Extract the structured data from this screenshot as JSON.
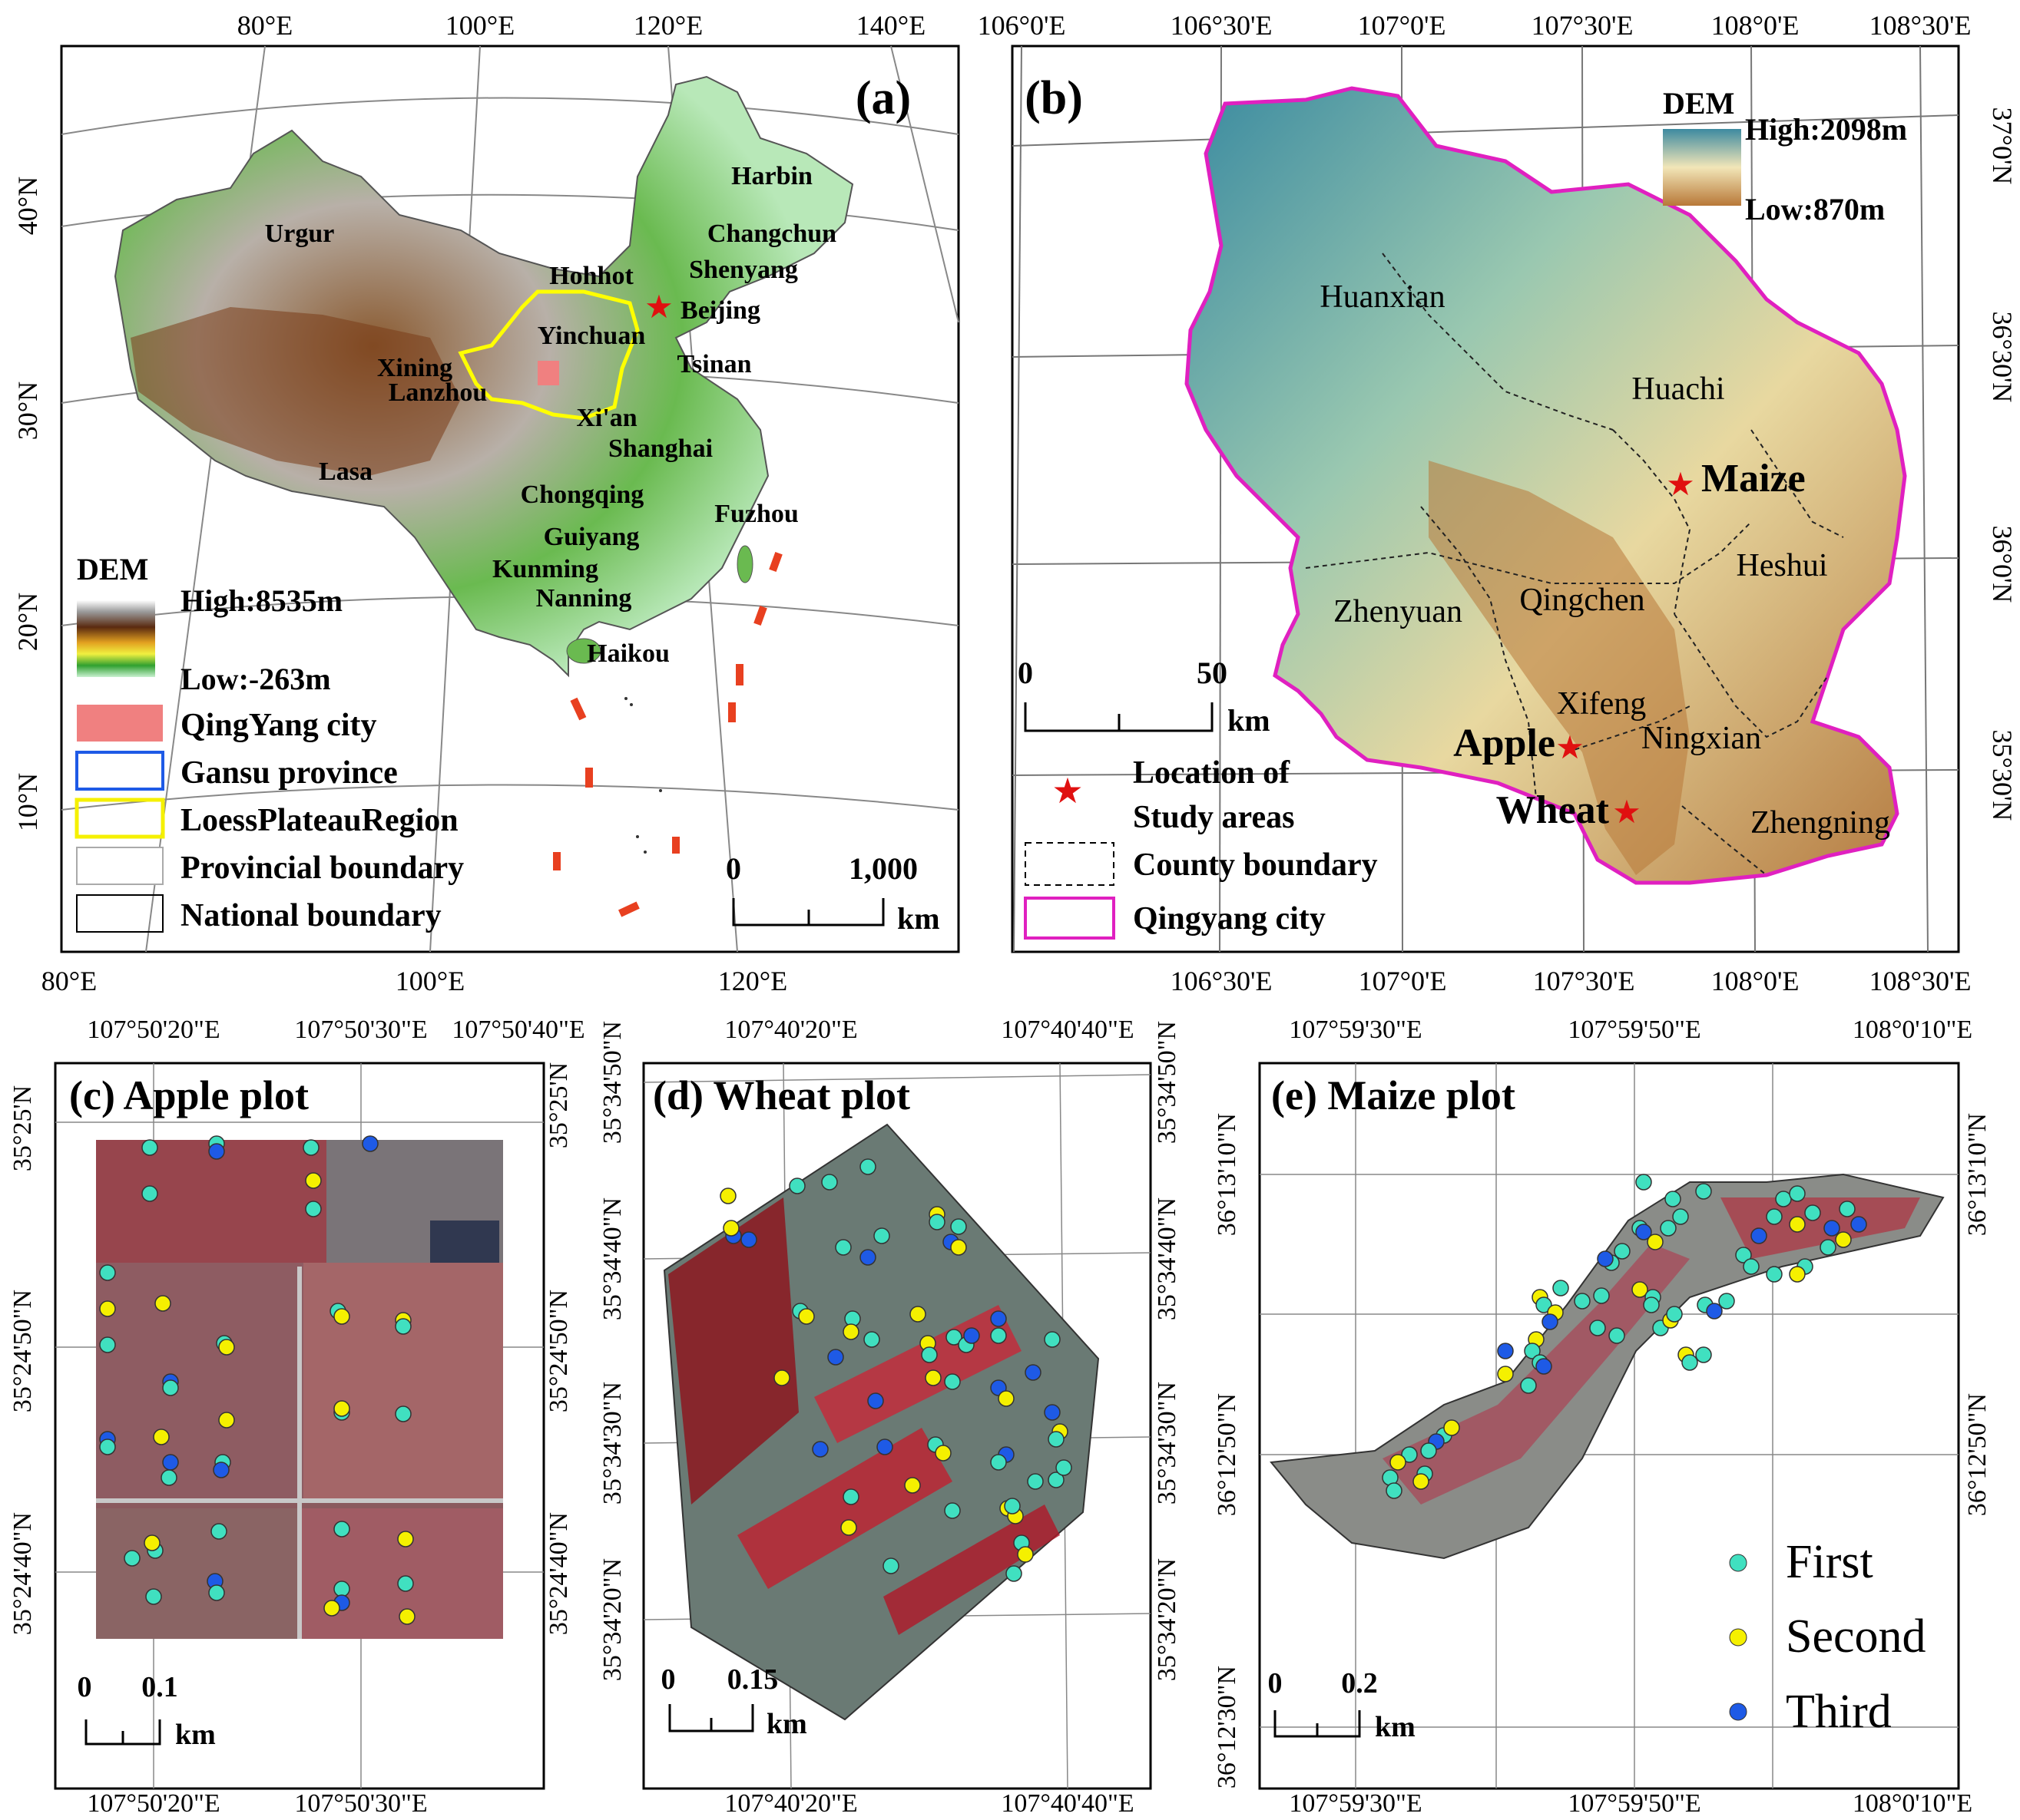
{
  "panel_a": {
    "tag": "(a)",
    "top_ticks": [
      "80°E",
      "100°E",
      "120°E",
      "140°E"
    ],
    "bottom_ticks": [
      "80°E",
      "100°E",
      "120°E"
    ],
    "left_ticks": [
      "40°N",
      "30°N",
      "20°N",
      "10°N"
    ],
    "cities": [
      "Harbin",
      "Changchun",
      "Shenyang",
      "Urgur",
      "Hohhot",
      "Beijing",
      "Yinchuan",
      "Tsinan",
      "Xining",
      "Lanzhou",
      "Xi'an",
      "Shanghai",
      "Lasa",
      "Chongqing",
      "Fuzhou",
      "Guiyang",
      "Kunming",
      "Nanning",
      "Haikou"
    ],
    "legend": {
      "dem_title": "DEM",
      "dem_high": "High:8535m",
      "dem_low": "Low:-263m",
      "items": [
        "QingYang city",
        "Gansu province",
        "LoessPlateauRegion",
        "Provincial boundary",
        "National boundary"
      ]
    },
    "scale": {
      "zero": "0",
      "max": "1,000",
      "unit": "km"
    }
  },
  "panel_b": {
    "tag": "(b)",
    "top_ticks": [
      "106°0'E",
      "106°30'E",
      "107°0'E",
      "107°30'E",
      "108°0'E",
      "108°30'E"
    ],
    "bottom_ticks": [
      "106°30'E",
      "107°0'E",
      "107°30'E",
      "108°0'E",
      "108°30'E"
    ],
    "right_ticks": [
      "37°0'N",
      "36°30'N",
      "36°0'N",
      "35°30'N"
    ],
    "counties": [
      "Huanxian",
      "Huachi",
      "Heshui",
      "Zhenyuan",
      "Qingchen",
      "Xifeng",
      "Ningxian",
      "Zhengning"
    ],
    "study_sites": [
      "Maize",
      "Apple",
      "Wheat"
    ],
    "legend": {
      "dem_title": "DEM",
      "dem_high": "High:2098m",
      "dem_low": "Low:870m",
      "location": "Location of\nStudy areas",
      "county": "County boundary",
      "city": "Qingyang city"
    },
    "scale": {
      "zero": "0",
      "max": "50",
      "unit": "km"
    }
  },
  "panel_c": {
    "title": "(c) Apple plot",
    "top_ticks": [
      "107°50'20\"E",
      "107°50'30\"E",
      "107°50'40\"E"
    ],
    "bottom_ticks": [
      "107°50'20\"E",
      "107°50'30\"E"
    ],
    "left_ticks": [
      "35°25'N",
      "35°24'50\"N",
      "35°24'40\"N"
    ],
    "right_ticks": [
      "35°25'N",
      "35°24'50\"N",
      "35°24'40\"N"
    ],
    "scale": {
      "zero": "0",
      "max": "0.1",
      "unit": "km"
    }
  },
  "panel_d": {
    "title": "(d) Wheat plot",
    "top_ticks": [
      "107°40'20\"E",
      "107°40'40\"E"
    ],
    "bottom_ticks": [
      "107°40'20\"E",
      "107°40'40\"E"
    ],
    "left_ticks": [
      "35°34'50\"N",
      "35°34'40\"N",
      "35°34'30\"N",
      "35°34'20\"N"
    ],
    "right_ticks": [
      "35°34'50\"N",
      "35°34'40\"N",
      "35°34'30\"N",
      "35°34'20\"N"
    ],
    "scale": {
      "zero": "0",
      "max": "0.15",
      "unit": "km"
    }
  },
  "panel_e": {
    "title": "(e) Maize plot",
    "top_ticks": [
      "107°59'30\"E",
      "107°59'50\"E",
      "108°0'10\"E"
    ],
    "bottom_ticks": [
      "107°59'30\"E",
      "107°59'50\"E",
      "108°0'10\"E"
    ],
    "left_ticks": [
      "36°13'10\"N",
      "36°12'50\"N",
      "36°12'30\"N"
    ],
    "right_ticks": [
      "36°13'10\"N",
      "36°12'50\"N"
    ],
    "scale": {
      "zero": "0",
      "max": "0.2",
      "unit": "km"
    },
    "legend": [
      "First",
      "Second",
      "Third"
    ]
  },
  "colors": {
    "first": "#40e0c0",
    "second": "#f5f000",
    "third": "#1e5ae6",
    "star": "#e01010",
    "city_outline": "#e020c0",
    "loess": "#ffff00",
    "gansu": "#1e5ae6",
    "qingyang_fill": "#f08080"
  }
}
